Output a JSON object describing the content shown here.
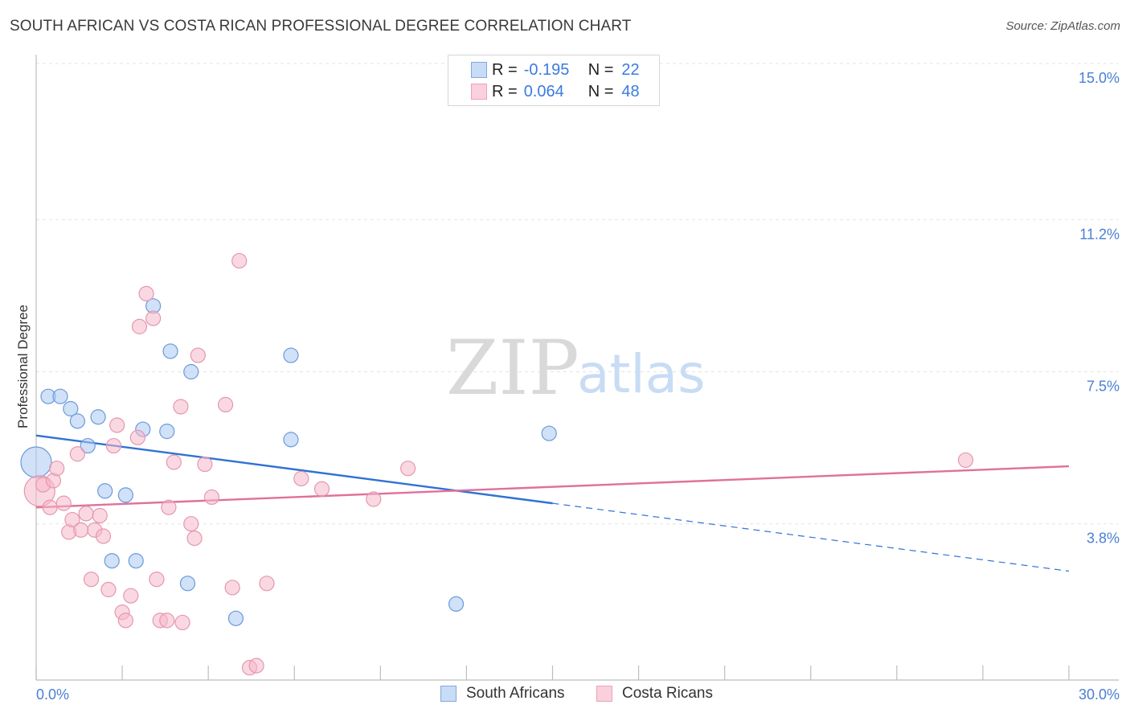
{
  "header": {
    "title": "SOUTH AFRICAN VS COSTA RICAN PROFESSIONAL DEGREE CORRELATION CHART",
    "source": "Source: ZipAtlas.com"
  },
  "watermark": {
    "zip": "ZIP",
    "atlas": "atlas"
  },
  "legend": {
    "rows": [
      {
        "r_label": "R =",
        "r_value": "-0.195",
        "n_label": "N =",
        "n_value": "22",
        "color": "#a9c8f2"
      },
      {
        "r_label": "R =",
        "r_value": "0.064",
        "n_label": "N =",
        "n_value": "48",
        "color": "#f6b8cb"
      }
    ]
  },
  "bottom_legend": {
    "items": [
      {
        "label": "South Africans",
        "color": "#a9c8f2"
      },
      {
        "label": "Costa Ricans",
        "color": "#f6b8cb"
      }
    ]
  },
  "chart_data": {
    "type": "scatter",
    "title": "SOUTH AFRICAN VS COSTA RICAN PROFESSIONAL DEGREE CORRELATION CHART",
    "xlabel": "",
    "ylabel": "Professional Degree",
    "xlim": [
      0,
      30
    ],
    "ylim": [
      0,
      15
    ],
    "x_tick_labels": [
      "0.0%",
      "30.0%"
    ],
    "y_ticks": [
      3.8,
      7.5,
      11.2,
      15.0
    ],
    "y_tick_labels": [
      "3.8%",
      "7.5%",
      "11.2%",
      "15.0%"
    ],
    "grid": true,
    "series": [
      {
        "name": "South Africans",
        "color": "#a9c8f2",
        "stroke": "#6a9bd8",
        "trend_color": "#2f72d4",
        "trend": {
          "x0": 0,
          "y0": 5.95,
          "x1": 15,
          "y1": 4.3,
          "dashed_to_x": 30,
          "dashed_to_y": 2.65
        },
        "points": [
          {
            "x": 0.0,
            "y": 5.3,
            "big": true
          },
          {
            "x": 0.35,
            "y": 6.9
          },
          {
            "x": 0.7,
            "y": 6.9
          },
          {
            "x": 1.0,
            "y": 6.6
          },
          {
            "x": 1.2,
            "y": 6.3
          },
          {
            "x": 1.5,
            "y": 5.7
          },
          {
            "x": 1.8,
            "y": 6.4
          },
          {
            "x": 2.0,
            "y": 4.6
          },
          {
            "x": 2.2,
            "y": 2.9
          },
          {
            "x": 2.6,
            "y": 4.5
          },
          {
            "x": 2.9,
            "y": 2.9
          },
          {
            "x": 3.1,
            "y": 6.1
          },
          {
            "x": 3.4,
            "y": 9.1
          },
          {
            "x": 3.8,
            "y": 6.05
          },
          {
            "x": 3.9,
            "y": 8.0
          },
          {
            "x": 4.4,
            "y": 2.35
          },
          {
            "x": 4.5,
            "y": 7.5
          },
          {
            "x": 5.8,
            "y": 1.5
          },
          {
            "x": 7.4,
            "y": 7.9
          },
          {
            "x": 7.4,
            "y": 5.85
          },
          {
            "x": 12.2,
            "y": 1.85
          },
          {
            "x": 14.9,
            "y": 6.0
          }
        ]
      },
      {
        "name": "Costa Ricans",
        "color": "#f6b8cb",
        "stroke": "#e597b0",
        "trend_color": "#e0709a",
        "trend": {
          "x0": 0,
          "y0": 4.2,
          "x1": 30,
          "y1": 5.2
        },
        "points": [
          {
            "x": 0.1,
            "y": 4.6,
            "big": true
          },
          {
            "x": 0.2,
            "y": 4.75
          },
          {
            "x": 0.4,
            "y": 4.2
          },
          {
            "x": 0.5,
            "y": 4.85
          },
          {
            "x": 0.6,
            "y": 5.15
          },
          {
            "x": 0.8,
            "y": 4.3
          },
          {
            "x": 0.95,
            "y": 3.6
          },
          {
            "x": 1.05,
            "y": 3.9
          },
          {
            "x": 1.2,
            "y": 5.5
          },
          {
            "x": 1.3,
            "y": 3.65
          },
          {
            "x": 1.45,
            "y": 4.05
          },
          {
            "x": 1.6,
            "y": 2.45
          },
          {
            "x": 1.7,
            "y": 3.65
          },
          {
            "x": 1.85,
            "y": 4.0
          },
          {
            "x": 1.95,
            "y": 3.5
          },
          {
            "x": 2.1,
            "y": 2.2
          },
          {
            "x": 2.25,
            "y": 5.7
          },
          {
            "x": 2.35,
            "y": 6.2
          },
          {
            "x": 2.5,
            "y": 1.65
          },
          {
            "x": 2.6,
            "y": 1.45
          },
          {
            "x": 2.75,
            "y": 2.05
          },
          {
            "x": 2.95,
            "y": 5.9
          },
          {
            "x": 3.0,
            "y": 8.6
          },
          {
            "x": 3.2,
            "y": 9.4
          },
          {
            "x": 3.4,
            "y": 8.8
          },
          {
            "x": 3.5,
            "y": 2.45
          },
          {
            "x": 3.6,
            "y": 1.45
          },
          {
            "x": 3.8,
            "y": 1.45
          },
          {
            "x": 3.85,
            "y": 4.2
          },
          {
            "x": 4.0,
            "y": 5.3
          },
          {
            "x": 4.2,
            "y": 6.65
          },
          {
            "x": 4.25,
            "y": 1.4
          },
          {
            "x": 4.5,
            "y": 3.8
          },
          {
            "x": 4.6,
            "y": 3.45
          },
          {
            "x": 4.7,
            "y": 7.9
          },
          {
            "x": 4.9,
            "y": 5.25
          },
          {
            "x": 5.1,
            "y": 4.45
          },
          {
            "x": 5.5,
            "y": 6.7
          },
          {
            "x": 5.7,
            "y": 2.25
          },
          {
            "x": 5.9,
            "y": 10.2
          },
          {
            "x": 6.2,
            "y": 0.3
          },
          {
            "x": 6.4,
            "y": 0.35
          },
          {
            "x": 6.7,
            "y": 2.35
          },
          {
            "x": 7.7,
            "y": 4.9
          },
          {
            "x": 8.3,
            "y": 4.65
          },
          {
            "x": 9.8,
            "y": 4.4
          },
          {
            "x": 10.8,
            "y": 5.15
          },
          {
            "x": 27.0,
            "y": 5.35
          }
        ]
      }
    ]
  }
}
